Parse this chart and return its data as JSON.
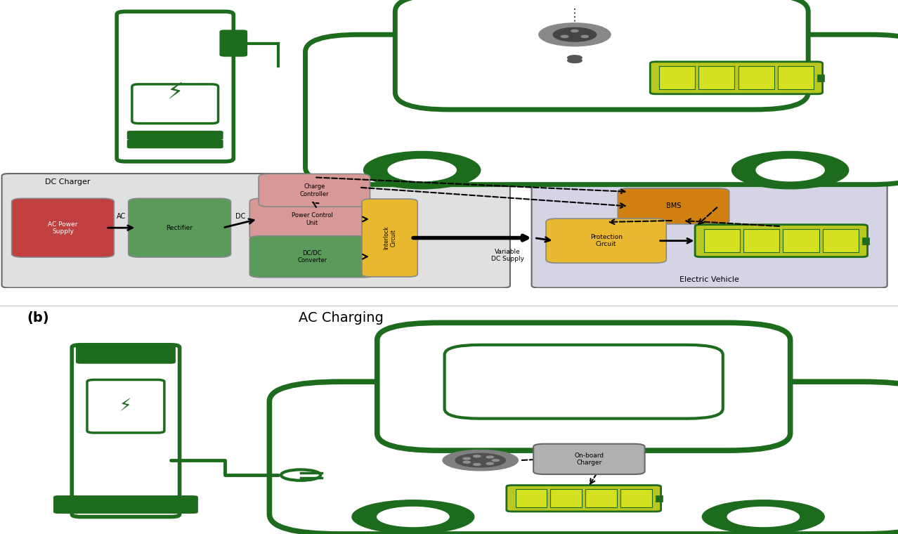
{
  "bg": "#ffffff",
  "green": "#1d6b1d",
  "red_box": "#c04040",
  "green_box": "#5a9a5a",
  "pink_box": "#d89898",
  "yellow_box": "#e8b830",
  "orange_box": "#d08010",
  "gray_box": "#909090",
  "gray_bg": "#d8d8d8",
  "ev_bg": "#d0d0e0",
  "dc_charger_label": "DC Charger",
  "ev_label": "Electric Vehicle",
  "var_dc_label": "Variable\nDC Supply",
  "ac_label": "AC",
  "dc_label": "DC",
  "b_label": "(b)",
  "ac_charging_label": "AC Charging",
  "ac_power_label": "AC Power\nSupply",
  "rectifier_label": "Rectifier",
  "pcu_label": "Power Control\nUnit",
  "dcdc_label": "DC/DC\nConverter",
  "cc_label": "Charge\nController",
  "il_label": "Interlock\nCircuit",
  "bms_label": "BMS",
  "pc_label": "Protection\nCircuit",
  "obc_label": "On-board\nCharger"
}
